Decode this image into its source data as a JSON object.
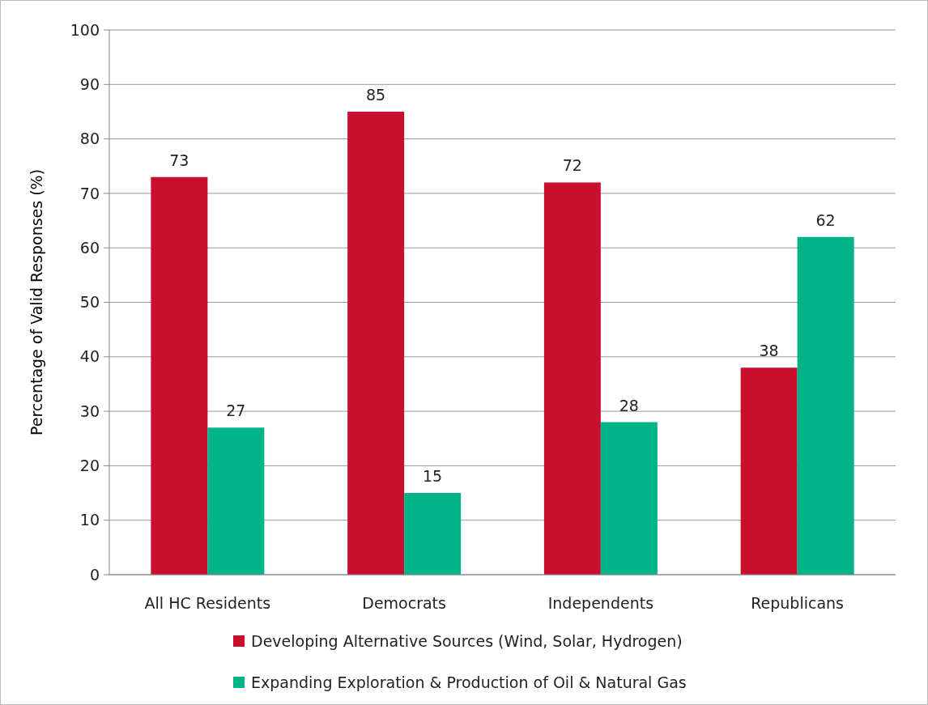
{
  "chart_data": {
    "type": "bar",
    "ylabel": "Percentage of Valid Responses (%)",
    "categories": [
      "All HC Residents",
      "Democrats",
      "Independents",
      "Republicans"
    ],
    "series": [
      {
        "name": "Developing Alternative Sources (Wind, Solar, Hydrogen)",
        "color": "#c8102e",
        "values": [
          73,
          85,
          72,
          38
        ]
      },
      {
        "name": "Expanding Exploration & Production of Oil & Natural Gas",
        "color": "#00b388",
        "values": [
          27,
          15,
          28,
          62
        ]
      }
    ],
    "ylim": [
      0,
      100
    ],
    "yticks": [
      0,
      10,
      20,
      30,
      40,
      50,
      60,
      70,
      80,
      90,
      100
    ],
    "grid": "y",
    "legend": "bottom",
    "data_labels": true
  }
}
